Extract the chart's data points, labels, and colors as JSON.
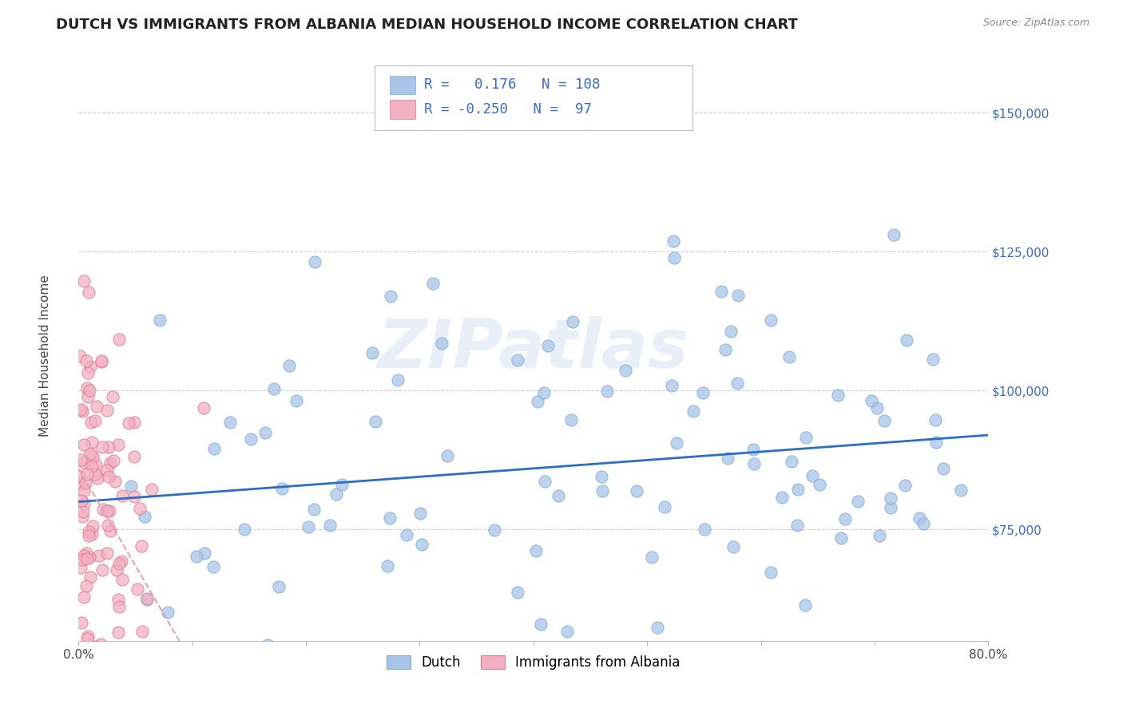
{
  "title": "DUTCH VS IMMIGRANTS FROM ALBANIA MEDIAN HOUSEHOLD INCOME CORRELATION CHART",
  "source": "Source: ZipAtlas.com",
  "ylabel": "Median Household Income",
  "watermark": "ZIPatlas",
  "bottom_legend": [
    "Dutch",
    "Immigrants from Albania"
  ],
  "trendline_blue_slope": 15000,
  "trendline_blue_intercept": 80000,
  "trendline_pink_slope": -350000,
  "trendline_pink_intercept": 86000,
  "trendline_pink_xmax": 0.11,
  "xlim": [
    0.0,
    0.8
  ],
  "ylim": [
    55000,
    160000
  ],
  "yticks": [
    75000,
    100000,
    125000,
    150000
  ],
  "ytick_labels": [
    "$75,000",
    "$100,000",
    "$125,000",
    "$150,000"
  ],
  "xtick_labels": [
    "0.0%",
    "",
    "",
    "",
    "",
    "",
    "",
    "",
    "80.0%"
  ],
  "background": "#ffffff",
  "grid_color": "#cccccc",
  "dot_color_blue": "#aac4e8",
  "dot_edge_blue": "#7aafd4",
  "dot_color_pink": "#f2b0c2",
  "dot_edge_pink": "#e07898",
  "trendline_color_blue": "#2a6fc4",
  "trendline_color_pink": "#e8a0b0",
  "legend_r1": "R =   0.176   N = 108",
  "legend_r2": "R = -0.250   N =  97",
  "legend_color": "#3a6bc8",
  "title_color": "#222222",
  "source_color": "#888888",
  "ylabel_color": "#444444"
}
